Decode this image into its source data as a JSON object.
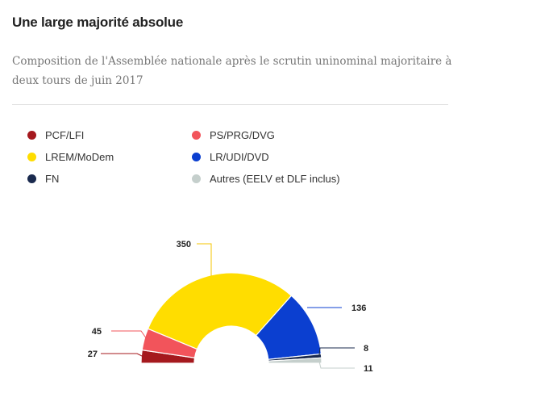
{
  "title": "Une large majorité absolue",
  "subtitle": "Composition de l'Assemblée nationale après le scrutin uninominal majoritaire à deux tours de juin 2017",
  "chart_data": {
    "type": "pie",
    "variant": "semi-circle donut (parliament)",
    "series": [
      {
        "name": "PCF/LFI",
        "value": 27,
        "color": "#a5191e"
      },
      {
        "name": "PS/PRG/DVG",
        "value": 45,
        "color": "#f2545b"
      },
      {
        "name": "LREM/MoDem",
        "value": 350,
        "color": "#ffdd00"
      },
      {
        "name": "LR/UDI/DVD",
        "value": 136,
        "color": "#0b3fd0"
      },
      {
        "name": "FN",
        "value": 8,
        "color": "#1a2a4e"
      },
      {
        "name": "Autres (EELV et DLF inclus)",
        "value": 11,
        "color": "#c5cfcc"
      }
    ],
    "legend": [
      {
        "name": "PCF/LFI",
        "color": "#a5191e"
      },
      {
        "name": "PS/PRG/DVG",
        "color": "#f2545b"
      },
      {
        "name": "LREM/MoDem",
        "color": "#ffdd00"
      },
      {
        "name": "LR/UDI/DVD",
        "color": "#0b3fd0"
      },
      {
        "name": "FN",
        "color": "#1a2a4e"
      },
      {
        "name": "Autres (EELV et DLF inclus)",
        "color": "#c5cfcc"
      }
    ]
  }
}
